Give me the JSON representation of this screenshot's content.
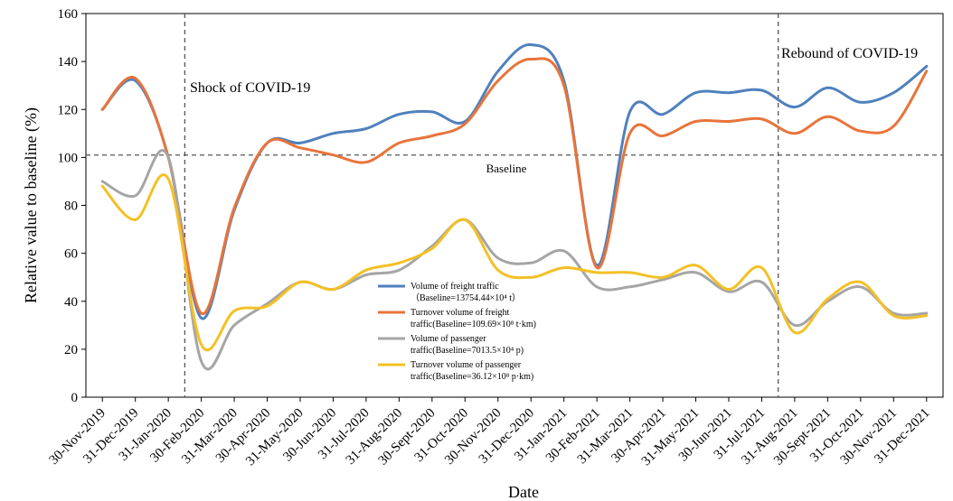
{
  "chart_data": {
    "type": "line",
    "xlabel": "Date",
    "ylabel": "Relative value to baseline (%)",
    "ylim": [
      0,
      160
    ],
    "yticks": [
      0,
      20,
      40,
      60,
      80,
      100,
      120,
      140,
      160
    ],
    "grid": false,
    "legend_position": "center",
    "categories": [
      "30-Nov-2019",
      "31-Dec-2019",
      "31-Jan-2020",
      "30-Feb-2020",
      "31-Mar-2020",
      "30-Apr-2020",
      "31-May-2020",
      "30-Jun-2020",
      "31-Jul-2020",
      "31-Aug-2020",
      "30-Sept-2020",
      "31-Oct-2020",
      "30-Nov-2020",
      "31-Dec-2020",
      "31-Jan-2021",
      "30-Feb-2021",
      "31-Mar-2021",
      "30-Apr-2021",
      "31-May-2021",
      "30-Jun-2021",
      "31-Jul-2021",
      "31-Aug-2021",
      "30-Sept-2021",
      "31-Oct-2021",
      "30-Nov-2021",
      "31-Dec-2021"
    ],
    "series": [
      {
        "name": "Volume of freight traffic",
        "baseline_note": "（Baseline=13754.44×10⁴ t）",
        "color": "#4f81bd",
        "values": [
          120,
          132,
          100,
          33,
          78,
          106,
          106,
          110,
          112,
          118,
          119,
          115,
          136,
          147,
          132,
          55,
          119,
          118,
          127,
          127,
          128,
          121,
          129,
          123,
          127,
          138
        ]
      },
      {
        "name": "Turnover volume of freight traffic",
        "baseline_note": "traffic(Baseline=109.69×10⁸ t·km)",
        "color": "#e8743b",
        "values": [
          120,
          133,
          100,
          35,
          79,
          106,
          104,
          101,
          98,
          106,
          109,
          114,
          132,
          141,
          130,
          54,
          110,
          109,
          115,
          115,
          116,
          110,
          117,
          111,
          113,
          136
        ]
      },
      {
        "name": "Volume of passenger traffic",
        "baseline_note": "traffic(Baseline=7013.5×10⁴ p)",
        "color": "#a5a5a5",
        "values": [
          90,
          84,
          100,
          15,
          30,
          39,
          48,
          45,
          51,
          53,
          63,
          74,
          58,
          56,
          61,
          46,
          46,
          49,
          52,
          44,
          48,
          30,
          40,
          46,
          35,
          35
        ]
      },
      {
        "name": "Turnover volume of passenger traffic",
        "baseline_note": "traffic(Baseline=36.12×10⁸ p·km)",
        "color": "#f4c025",
        "values": [
          88,
          74,
          91,
          22,
          36,
          38,
          48,
          45,
          53,
          56,
          62,
          74,
          53,
          50,
          54,
          52,
          52,
          50,
          55,
          45,
          54,
          27,
          41,
          48,
          34,
          34
        ]
      }
    ],
    "legend_lines": [
      {
        "series": 0,
        "lines": [
          "Volume of freight traffic",
          "（Baseline=13754.44×10⁴ t）"
        ]
      },
      {
        "series": 1,
        "lines": [
          "Turnover volume of freight",
          "traffic(Baseline=109.69×10⁸ t·km)"
        ]
      },
      {
        "series": 2,
        "lines": [
          "Volume of passenger",
          "traffic(Baseline=7013.5×10⁴ p)"
        ]
      },
      {
        "series": 3,
        "lines": [
          "Turnover volume of passenger",
          "traffic(Baseline=36.12×10⁸ p·km)"
        ]
      }
    ],
    "annotations": [
      {
        "text": "Shock of COVID-19"
      },
      {
        "text": "Rebound of COVID-19"
      },
      {
        "text": "Baseline"
      }
    ],
    "reference_lines": {
      "horizontal_y": 101,
      "vertical_after": [
        "31-Jan-2020",
        "31-Jul-2021"
      ]
    }
  }
}
